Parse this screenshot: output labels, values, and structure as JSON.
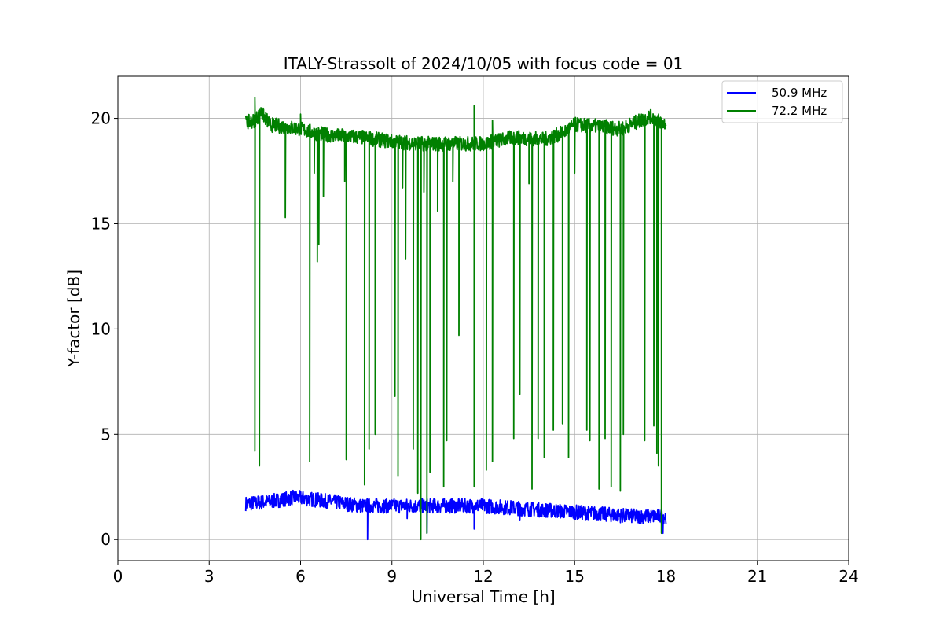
{
  "chart_data": {
    "type": "line",
    "title": "ITALY-Strassolt of 2024/10/05 with focus code = 01",
    "xlabel": "Universal Time [h]",
    "ylabel": "Y-factor [dB]",
    "xlim": [
      0,
      24
    ],
    "ylim": [
      -1,
      22
    ],
    "xticks": [
      0,
      3,
      6,
      9,
      12,
      15,
      18,
      21,
      24
    ],
    "yticks": [
      0,
      5,
      10,
      15,
      20
    ],
    "xtick_labels": [
      "0",
      "3",
      "6",
      "9",
      "12",
      "15",
      "18",
      "21",
      "24"
    ],
    "ytick_labels": [
      "0",
      "5",
      "10",
      "15",
      "20"
    ],
    "grid": true,
    "legend_position": "top-right",
    "series": [
      {
        "name": "50.9 MHz",
        "color": "#0000ff",
        "baseline": [
          [
            4.2,
            1.7
          ],
          [
            5.0,
            1.8
          ],
          [
            5.8,
            2.0
          ],
          [
            7.0,
            1.8
          ],
          [
            8.0,
            1.6
          ],
          [
            9.0,
            1.6
          ],
          [
            10.0,
            1.6
          ],
          [
            11.0,
            1.6
          ],
          [
            12.0,
            1.6
          ],
          [
            13.0,
            1.5
          ],
          [
            14.0,
            1.4
          ],
          [
            15.0,
            1.3
          ],
          [
            16.0,
            1.2
          ],
          [
            17.0,
            1.1
          ],
          [
            18.0,
            1.1
          ]
        ],
        "noise_amplitude": 0.35,
        "dips": [
          [
            8.2,
            0.0
          ],
          [
            9.5,
            1.0
          ],
          [
            10.15,
            0.3
          ],
          [
            11.7,
            0.5
          ],
          [
            13.2,
            0.9
          ],
          [
            17.9,
            0.3
          ]
        ]
      },
      {
        "name": "72.2 MHz",
        "color": "#008000",
        "baseline": [
          [
            4.2,
            19.8
          ],
          [
            4.5,
            19.9
          ],
          [
            4.7,
            20.3
          ],
          [
            5.0,
            19.7
          ],
          [
            6.0,
            19.5
          ],
          [
            6.5,
            19.3
          ],
          [
            7.0,
            19.2
          ],
          [
            8.0,
            19.1
          ],
          [
            9.0,
            18.9
          ],
          [
            10.0,
            18.8
          ],
          [
            11.0,
            18.8
          ],
          [
            12.0,
            18.8
          ],
          [
            13.0,
            19.1
          ],
          [
            14.0,
            19.0
          ],
          [
            14.6,
            19.3
          ],
          [
            15.0,
            19.7
          ],
          [
            16.0,
            19.6
          ],
          [
            16.5,
            19.5
          ],
          [
            17.0,
            19.8
          ],
          [
            17.5,
            20.1
          ],
          [
            18.0,
            19.7
          ]
        ],
        "noise_amplitude": 0.35,
        "spikes": [
          [
            4.5,
            21.0
          ],
          [
            6.0,
            20.2
          ],
          [
            11.7,
            20.6
          ],
          [
            12.3,
            19.9
          ]
        ],
        "dips": [
          [
            4.5,
            4.2
          ],
          [
            4.65,
            3.5
          ],
          [
            5.5,
            15.3
          ],
          [
            6.3,
            3.7
          ],
          [
            6.45,
            17.4
          ],
          [
            6.55,
            13.2
          ],
          [
            6.6,
            14.0
          ],
          [
            6.75,
            16.3
          ],
          [
            7.45,
            17.0
          ],
          [
            7.5,
            3.8
          ],
          [
            8.1,
            2.6
          ],
          [
            8.25,
            4.3
          ],
          [
            8.45,
            5.0
          ],
          [
            9.1,
            6.8
          ],
          [
            9.2,
            3.0
          ],
          [
            9.35,
            16.7
          ],
          [
            9.45,
            13.3
          ],
          [
            9.7,
            4.3
          ],
          [
            9.85,
            2.2
          ],
          [
            9.95,
            0.0
          ],
          [
            10.05,
            16.5
          ],
          [
            10.15,
            0.3
          ],
          [
            10.25,
            3.2
          ],
          [
            10.5,
            15.6
          ],
          [
            10.7,
            2.5
          ],
          [
            10.8,
            4.7
          ],
          [
            11.0,
            17.0
          ],
          [
            11.2,
            9.7
          ],
          [
            11.7,
            2.5
          ],
          [
            12.1,
            3.3
          ],
          [
            12.3,
            3.7
          ],
          [
            13.0,
            4.8
          ],
          [
            13.2,
            6.9
          ],
          [
            13.5,
            16.9
          ],
          [
            13.6,
            2.4
          ],
          [
            13.8,
            4.8
          ],
          [
            14.0,
            3.9
          ],
          [
            14.3,
            5.2
          ],
          [
            14.6,
            5.5
          ],
          [
            14.8,
            3.9
          ],
          [
            15.0,
            17.4
          ],
          [
            15.4,
            5.2
          ],
          [
            15.5,
            4.7
          ],
          [
            15.8,
            2.4
          ],
          [
            16.0,
            4.8
          ],
          [
            16.2,
            2.5
          ],
          [
            16.5,
            2.3
          ],
          [
            16.6,
            5.0
          ],
          [
            17.3,
            4.7
          ],
          [
            17.6,
            5.4
          ],
          [
            17.7,
            4.1
          ],
          [
            17.75,
            3.5
          ],
          [
            17.85,
            0.3
          ]
        ]
      }
    ]
  }
}
